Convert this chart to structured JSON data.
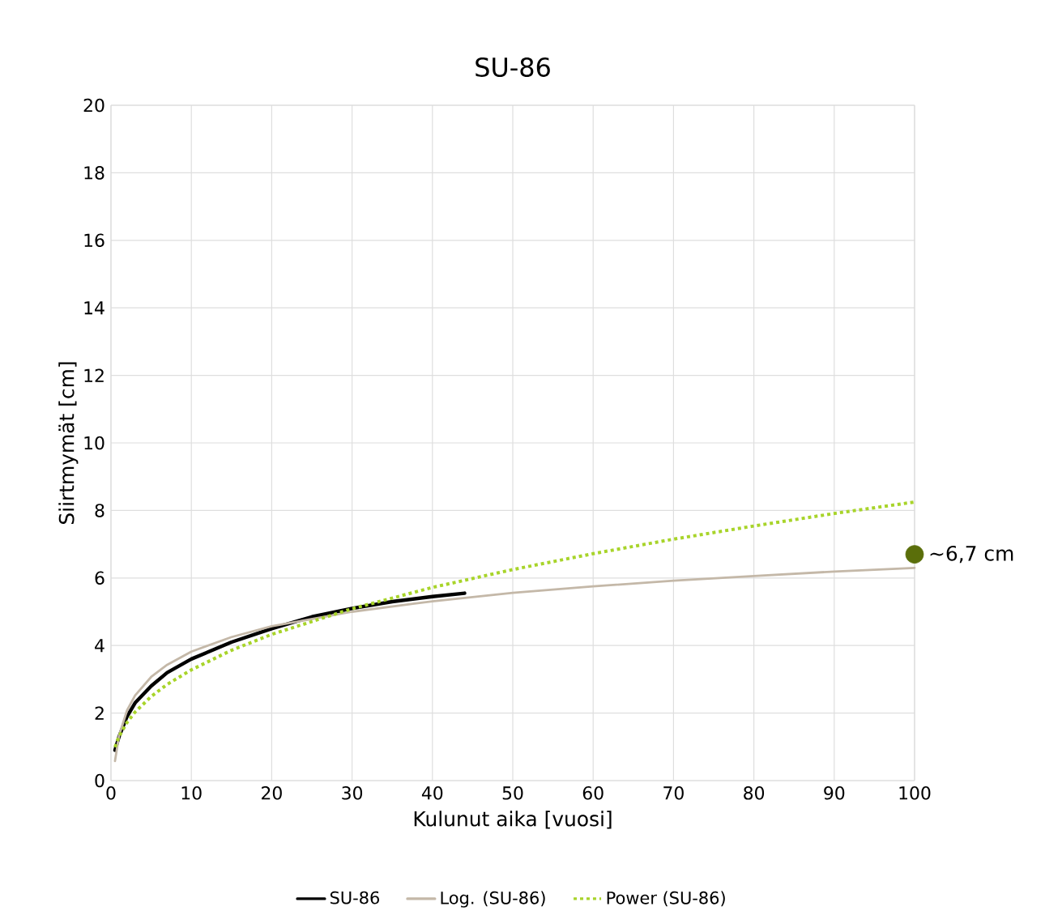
{
  "chart_data": {
    "type": "line",
    "title": "SU-86",
    "xlabel": "Kulunut aika [vuosi]",
    "ylabel": "Siirtmymät [cm]",
    "xlim": [
      0,
      100
    ],
    "ylim": [
      0,
      20
    ],
    "xticks": [
      0,
      10,
      20,
      30,
      40,
      50,
      60,
      70,
      80,
      90,
      100
    ],
    "yticks": [
      0,
      2,
      4,
      6,
      8,
      10,
      12,
      14,
      16,
      18,
      20
    ],
    "grid": true,
    "legend": "bottom",
    "marker": "none",
    "series": [
      {
        "name": "SU-86",
        "color": "#000000",
        "line_style": "solid",
        "x": [
          0.5,
          1,
          2,
          3,
          5,
          7,
          10,
          15,
          20,
          25,
          30,
          35,
          40,
          44
        ],
        "values": [
          0.9,
          1.3,
          1.9,
          2.3,
          2.8,
          3.2,
          3.6,
          4.1,
          4.5,
          4.85,
          5.1,
          5.3,
          5.45,
          5.55
        ]
      },
      {
        "name": "Log. (SU-86)",
        "color": "#c4b8a8",
        "line_style": "solid",
        "x": [
          0.5,
          1,
          2,
          3,
          5,
          7,
          10,
          15,
          20,
          30,
          40,
          50,
          60,
          70,
          80,
          90,
          100
        ],
        "values": [
          0.58,
          1.33,
          2.08,
          2.52,
          3.07,
          3.43,
          3.82,
          4.25,
          4.57,
          5.0,
          5.31,
          5.56,
          5.75,
          5.92,
          6.06,
          6.19,
          6.3
        ]
      },
      {
        "name": "Power (SU-86)",
        "color": "#a8d42a",
        "line_style": "dotted",
        "x": [
          0.5,
          1,
          2,
          3,
          5,
          7,
          10,
          15,
          20,
          30,
          40,
          50,
          60,
          70,
          80,
          90,
          100
        ],
        "values": [
          0.99,
          1.31,
          1.72,
          2.03,
          2.49,
          2.85,
          3.28,
          3.86,
          4.33,
          5.09,
          5.72,
          6.25,
          6.72,
          7.15,
          7.54,
          7.91,
          8.25
        ]
      },
      {
        "type": "scatter",
        "marker": "circle",
        "color": "#5a6e0a",
        "x": [
          100
        ],
        "values": [
          6.7
        ]
      }
    ],
    "annotations": [
      {
        "text": "~6,7 cm",
        "x": 100,
        "y": 6.7
      }
    ]
  }
}
